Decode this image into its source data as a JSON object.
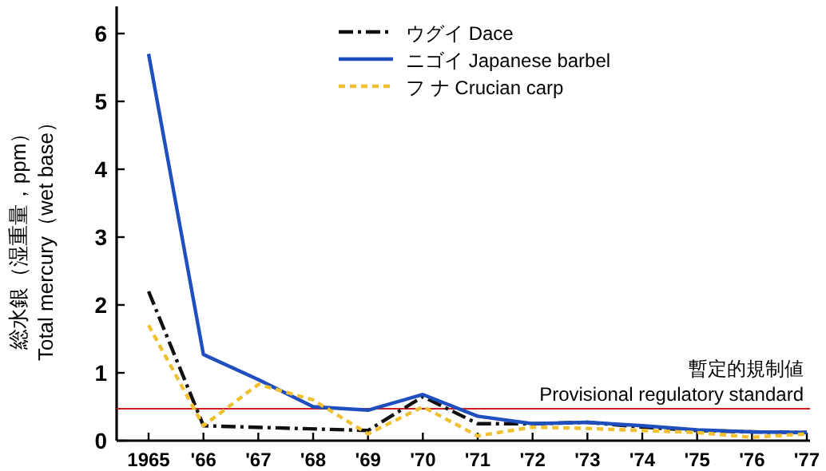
{
  "chart_data": {
    "type": "line",
    "ylabel": "総水銀（湿重量，ppm）\nTotal mercury（wet base）",
    "categories": [
      "1965",
      "'66",
      "'67",
      "'68",
      "'69",
      "'70",
      "'71",
      "'72",
      "'73",
      "'74",
      "'75",
      "'76",
      "'77"
    ],
    "series": [
      {
        "name": "ウグイ Dace",
        "color": "#111111",
        "line_style": "dashdot",
        "values": [
          2.2,
          0.22,
          null,
          null,
          0.15,
          0.65,
          0.25,
          0.25,
          0.27,
          0.2,
          0.15,
          0.13,
          0.12
        ]
      },
      {
        "name": "ニゴイ Japanese barbel",
        "color": "#1f4fbf",
        "line_style": "solid",
        "values": [
          5.7,
          1.27,
          0.9,
          0.5,
          0.45,
          0.68,
          0.36,
          0.25,
          0.27,
          0.22,
          0.16,
          0.13,
          0.12
        ]
      },
      {
        "name": "フ ナ Crucian carp",
        "color": "#f0c030",
        "line_style": "dashed",
        "values": [
          1.7,
          0.22,
          0.83,
          0.6,
          0.1,
          0.5,
          0.07,
          0.2,
          0.18,
          0.15,
          0.12,
          0.05,
          0.1
        ]
      }
    ],
    "ylim": [
      0,
      6.4
    ],
    "yticks": [
      0,
      1,
      2,
      3,
      4,
      5,
      6
    ],
    "grid": false,
    "legend": "top",
    "marker": "none",
    "ref_lines": [
      {
        "axis": "y",
        "value": 0.47,
        "label": "暫定的規制値\nProvisional regulatory standard",
        "color": "#cc2020"
      }
    ]
  }
}
